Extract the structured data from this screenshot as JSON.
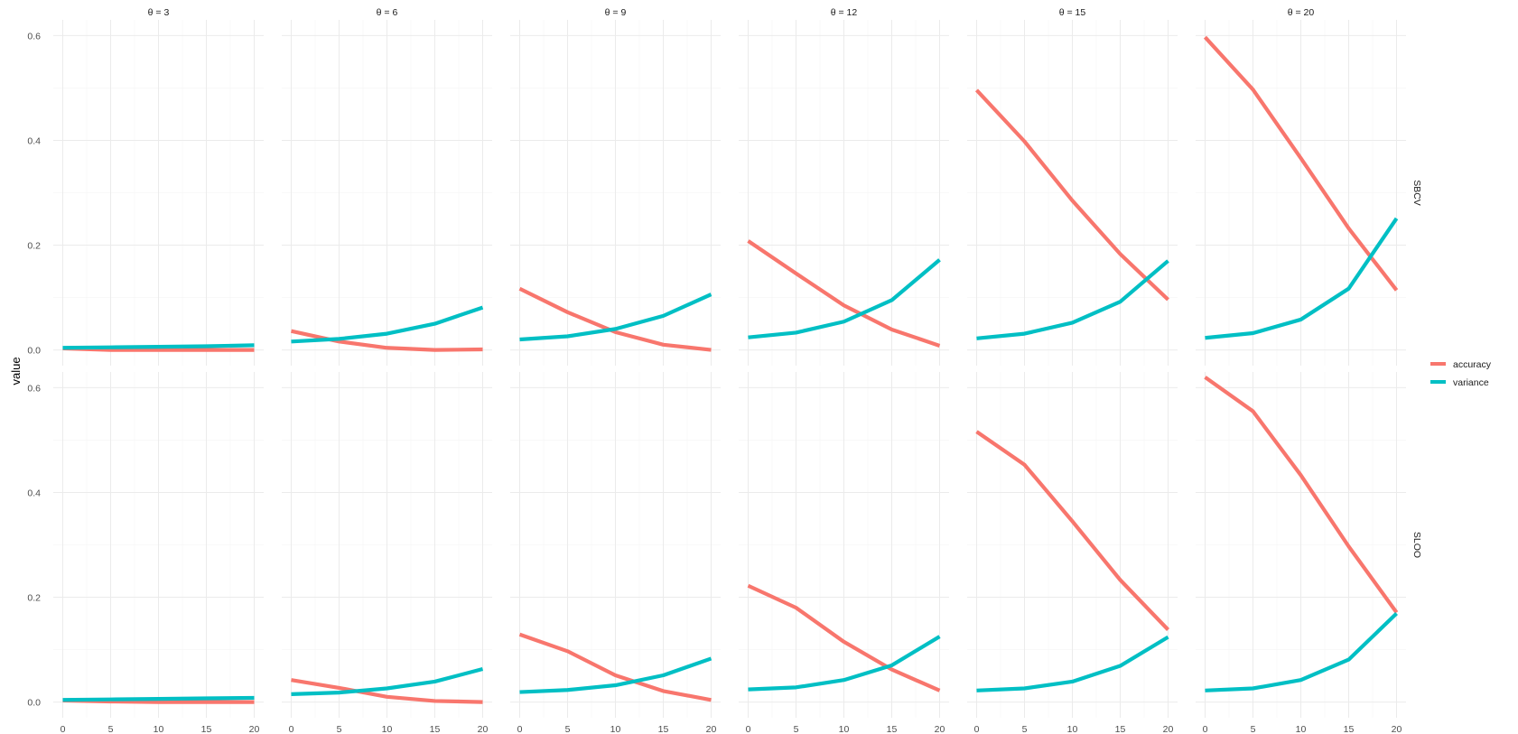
{
  "chart_data": {
    "type": "line",
    "ylabel": "value",
    "xlabel": "",
    "x": [
      0,
      5,
      10,
      15,
      20
    ],
    "x_ticks": [
      0,
      5,
      10,
      15,
      20
    ],
    "y_ticks": [
      0.0,
      0.2,
      0.4,
      0.6
    ],
    "y_tick_labels": [
      "0.0",
      "0.2",
      "0.4",
      "0.6"
    ],
    "ylim": [
      -0.03,
      0.63
    ],
    "grid": true,
    "legend_position": "right",
    "column_labels": [
      "θ = 3",
      "θ = 6",
      "θ = 9",
      "θ = 12",
      "θ = 15",
      "θ = 20"
    ],
    "row_labels": [
      "SBCV",
      "SLOO"
    ],
    "series_meta": [
      {
        "name": "accuracy",
        "color": "#F8766D"
      },
      {
        "name": "variance",
        "color": "#00BFC4"
      }
    ],
    "panels": [
      {
        "row": "SBCV",
        "col": "θ = 3",
        "accuracy": [
          0.003,
          0.0,
          0.0,
          0.0,
          0.0
        ],
        "variance": [
          0.004,
          0.005,
          0.006,
          0.007,
          0.009
        ]
      },
      {
        "row": "SBCV",
        "col": "θ = 6",
        "accuracy": [
          0.036,
          0.016,
          0.004,
          0.0,
          0.001
        ],
        "variance": [
          0.016,
          0.021,
          0.031,
          0.05,
          0.081
        ]
      },
      {
        "row": "SBCV",
        "col": "θ = 9",
        "accuracy": [
          0.117,
          0.072,
          0.034,
          0.01,
          0.0
        ],
        "variance": [
          0.02,
          0.026,
          0.04,
          0.065,
          0.106
        ]
      },
      {
        "row": "SBCV",
        "col": "θ = 12",
        "accuracy": [
          0.208,
          0.146,
          0.085,
          0.039,
          0.008
        ],
        "variance": [
          0.024,
          0.033,
          0.054,
          0.095,
          0.172
        ]
      },
      {
        "row": "SBCV",
        "col": "θ = 15",
        "accuracy": [
          0.496,
          0.398,
          0.285,
          0.183,
          0.096
        ],
        "variance": [
          0.022,
          0.031,
          0.052,
          0.092,
          0.17
        ]
      },
      {
        "row": "SBCV",
        "col": "θ = 20",
        "accuracy": [
          0.597,
          0.497,
          0.366,
          0.232,
          0.114
        ],
        "variance": [
          0.023,
          0.032,
          0.058,
          0.117,
          0.251
        ]
      },
      {
        "row": "SLOO",
        "col": "θ = 3",
        "accuracy": [
          0.003,
          0.001,
          0.0,
          0.0,
          0.0
        ],
        "variance": [
          0.004,
          0.005,
          0.006,
          0.007,
          0.008
        ]
      },
      {
        "row": "SLOO",
        "col": "θ = 6",
        "accuracy": [
          0.042,
          0.027,
          0.01,
          0.002,
          0.0
        ],
        "variance": [
          0.015,
          0.018,
          0.026,
          0.039,
          0.063
        ]
      },
      {
        "row": "SLOO",
        "col": "θ = 9",
        "accuracy": [
          0.129,
          0.097,
          0.051,
          0.021,
          0.004
        ],
        "variance": [
          0.019,
          0.023,
          0.032,
          0.051,
          0.083
        ]
      },
      {
        "row": "SLOO",
        "col": "θ = 12",
        "accuracy": [
          0.222,
          0.18,
          0.115,
          0.062,
          0.022
        ],
        "variance": [
          0.024,
          0.028,
          0.042,
          0.07,
          0.125
        ]
      },
      {
        "row": "SLOO",
        "col": "θ = 15",
        "accuracy": [
          0.516,
          0.453,
          0.345,
          0.233,
          0.138
        ],
        "variance": [
          0.022,
          0.026,
          0.039,
          0.069,
          0.124
        ]
      },
      {
        "row": "SLOO",
        "col": "θ = 20",
        "accuracy": [
          0.62,
          0.555,
          0.433,
          0.297,
          0.171
        ],
        "variance": [
          0.022,
          0.026,
          0.042,
          0.081,
          0.169
        ]
      }
    ]
  }
}
